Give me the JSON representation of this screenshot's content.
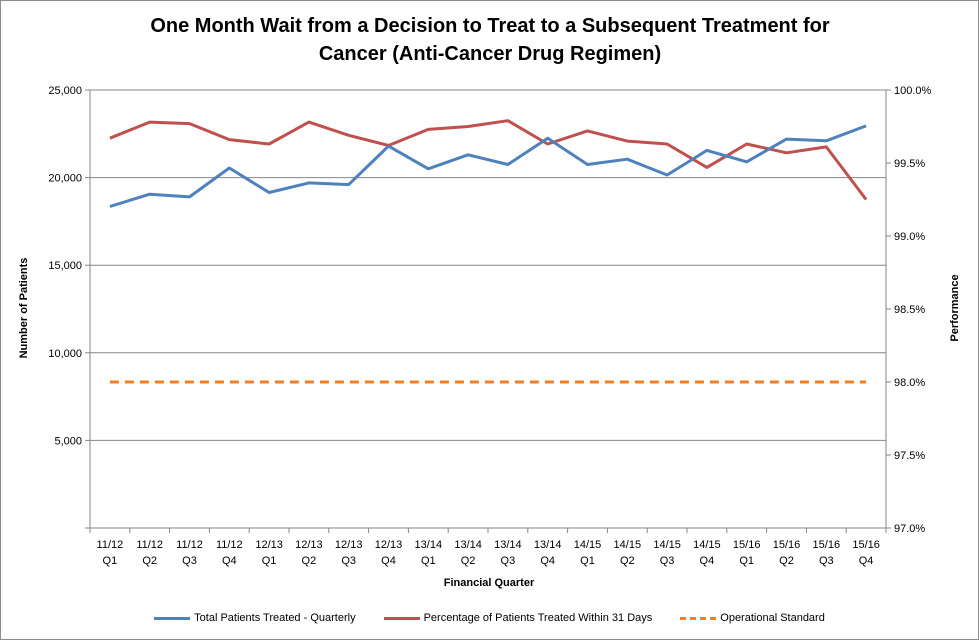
{
  "chart_data": {
    "type": "line",
    "title_line1": "One Month Wait from a Decision to Treat to a Subsequent Treatment for",
    "title_line2": "Cancer (Anti-Cancer Drug Regimen)",
    "xlabel": "Financial Quarter",
    "ylabel": "Number of Patients",
    "y2label": "Performance",
    "ylim": [
      0,
      25000
    ],
    "y2lim": [
      97.0,
      100.0
    ],
    "y_ticks": [
      "",
      "5,000",
      "10,000",
      "15,000",
      "20,000",
      "25,000"
    ],
    "y_tick_values": [
      0,
      5000,
      10000,
      15000,
      20000,
      25000
    ],
    "y2_ticks": [
      "97.0%",
      "97.5%",
      "98.0%",
      "98.5%",
      "99.0%",
      "99.5%",
      "100.0%"
    ],
    "y2_tick_values": [
      97.0,
      97.5,
      98.0,
      98.5,
      99.0,
      99.5,
      100.0
    ],
    "categories": [
      [
        "11/12",
        "Q1"
      ],
      [
        "11/12",
        "Q2"
      ],
      [
        "11/12",
        "Q3"
      ],
      [
        "11/12",
        "Q4"
      ],
      [
        "12/13",
        "Q1"
      ],
      [
        "12/13",
        "Q2"
      ],
      [
        "12/13",
        "Q3"
      ],
      [
        "12/13",
        "Q4"
      ],
      [
        "13/14",
        "Q1"
      ],
      [
        "13/14",
        "Q2"
      ],
      [
        "13/14",
        "Q3"
      ],
      [
        "13/14",
        "Q4"
      ],
      [
        "14/15",
        "Q1"
      ],
      [
        "14/15",
        "Q2"
      ],
      [
        "14/15",
        "Q3"
      ],
      [
        "14/15",
        "Q4"
      ],
      [
        "15/16",
        "Q1"
      ],
      [
        "15/16",
        "Q2"
      ],
      [
        "15/16",
        "Q3"
      ],
      [
        "15/16",
        "Q4"
      ]
    ],
    "grid": true,
    "legend_position": "bottom",
    "series": [
      {
        "name": "Total Patients Treated - Quarterly",
        "axis": "left",
        "color": "#4f81bd",
        "dashed": false,
        "values": [
          18350,
          19050,
          18900,
          20550,
          19150,
          19700,
          19600,
          21800,
          20500,
          21300,
          20750,
          22250,
          20750,
          21050,
          20150,
          21550,
          20900,
          22200,
          22100,
          22950
        ]
      },
      {
        "name": "Percentage of Patients Treated Within 31 Days",
        "axis": "right",
        "color": "#c0504d",
        "dashed": false,
        "values": [
          99.67,
          99.78,
          99.77,
          99.66,
          99.63,
          99.78,
          99.69,
          99.62,
          99.73,
          99.75,
          99.79,
          99.63,
          99.72,
          99.65,
          99.63,
          99.47,
          99.63,
          99.57,
          99.61,
          99.25
        ]
      },
      {
        "name": "Operational Standard",
        "axis": "right",
        "color": "#f07f25",
        "dashed": true,
        "values": [
          98.0,
          98.0,
          98.0,
          98.0,
          98.0,
          98.0,
          98.0,
          98.0,
          98.0,
          98.0,
          98.0,
          98.0,
          98.0,
          98.0,
          98.0,
          98.0,
          98.0,
          98.0,
          98.0,
          98.0
        ]
      }
    ]
  }
}
